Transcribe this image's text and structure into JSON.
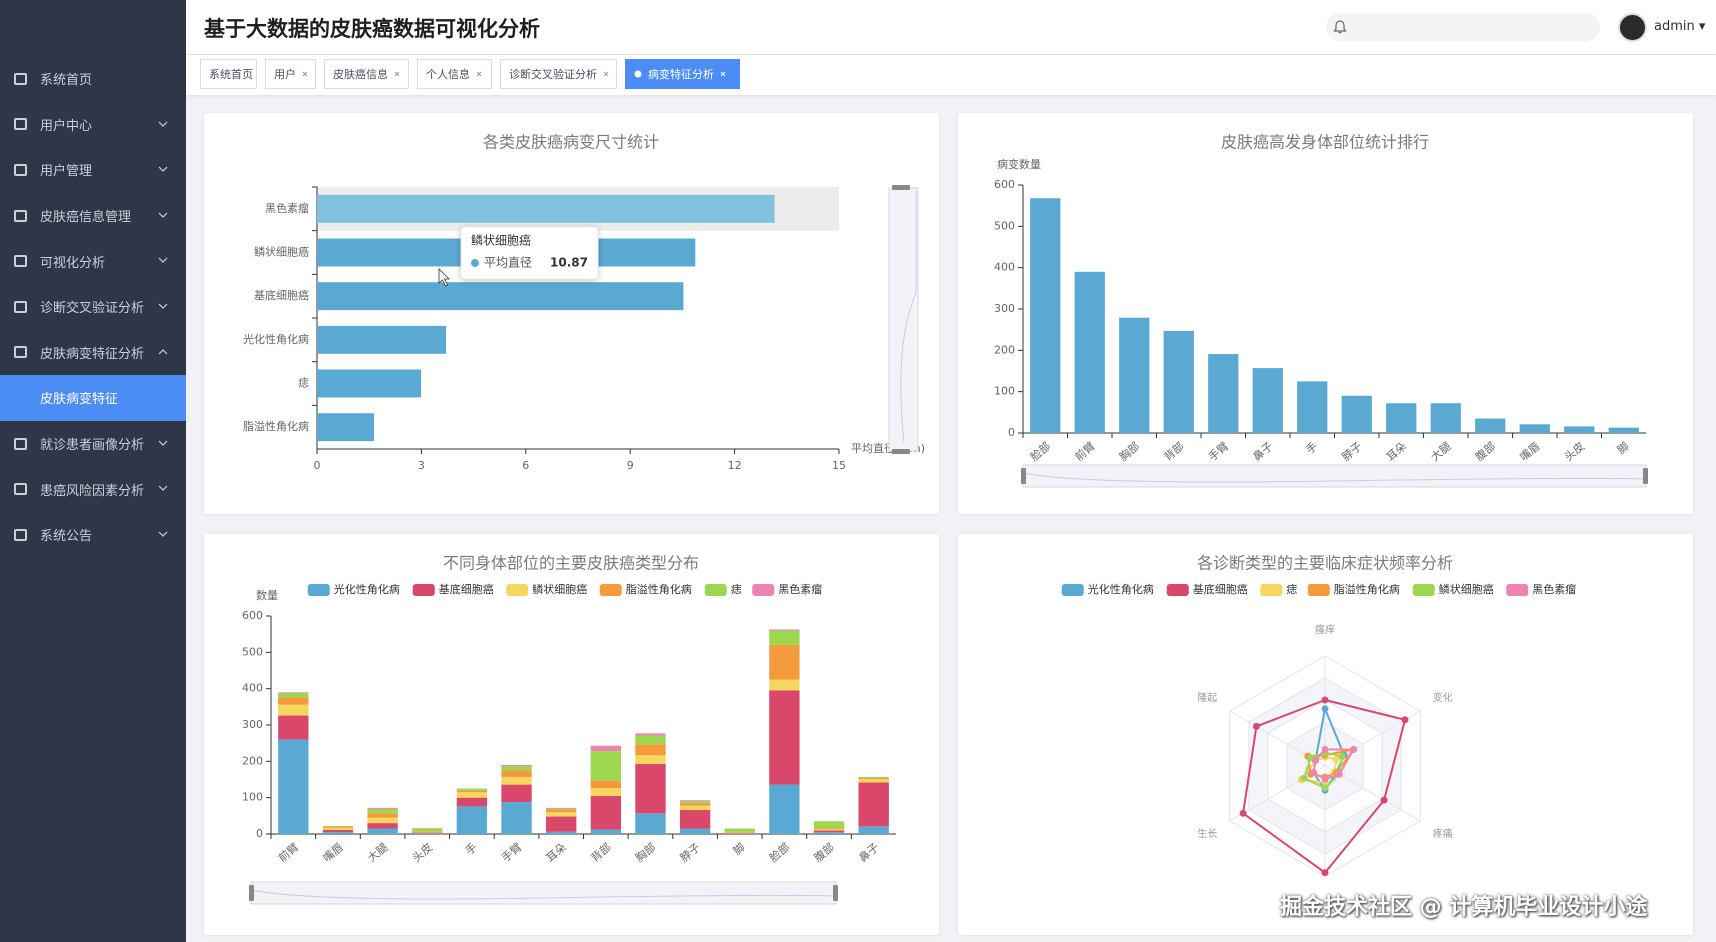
{
  "header": {
    "title": "基于大数据的皮肤癌数据可视化分析",
    "user": "admin"
  },
  "sidebar": {
    "items": [
      "系统首页",
      "用户中心",
      "用户管理",
      "皮肤癌信息管理",
      "可视化分析",
      "诊断交叉验证分析",
      "皮肤病变特征分析",
      "就诊患者画像分析",
      "患癌风险因素分析",
      "系统公告"
    ],
    "subitem": "皮肤病变特征"
  },
  "tabs": [
    "系统首页",
    "用户",
    "皮肤癌信息",
    "个人信息",
    "诊断交叉验证分析",
    "病变特征分析"
  ],
  "watermark": "掘金技术社区 @ 计算机毕业设计小途",
  "chart_data": [
    {
      "type": "hbar",
      "title": "各类皮肤癌病变尺寸统计",
      "categories": [
        "黑色素瘤",
        "鳞状细胞癌",
        "基底细胞癌",
        "光化性角化病",
        "痣",
        "脂溢性角化病"
      ],
      "series": [
        {
          "name": "平均直径",
          "color": "#5aa9d2",
          "values": [
            13.15,
            10.87,
            10.53,
            3.71,
            2.99,
            1.64
          ]
        }
      ],
      "x_axis_label": "平均直径(mm)",
      "xlim": [
        0,
        15
      ],
      "xticks": [
        0,
        3,
        6,
        9,
        12,
        15
      ]
    },
    {
      "type": "bar",
      "title": "皮肤癌高发身体部位统计排行",
      "y_axis_label": "病变数量",
      "categories": [
        "脸部",
        "前臂",
        "胸部",
        "背部",
        "手臂",
        "鼻子",
        "手",
        "脖子",
        "耳朵",
        "大腿",
        "腹部",
        "嘴唇",
        "头皮",
        "脚"
      ],
      "values": [
        568,
        390,
        279,
        247,
        191,
        157,
        125,
        90,
        72,
        72,
        35,
        21,
        16,
        13
      ],
      "color": "#5aa9d2",
      "ylim": [
        0,
        600
      ],
      "yticks": [
        0,
        100,
        200,
        300,
        400,
        500,
        600
      ]
    },
    {
      "type": "stacked_bar",
      "title": "不同身体部位的主要皮肤癌类型分布",
      "y_axis_label": "数量",
      "categories": [
        "前臂",
        "嘴唇",
        "大腿",
        "头皮",
        "手",
        "手臂",
        "耳朵",
        "背部",
        "胸部",
        "脖子",
        "脚",
        "脸部",
        "腹部",
        "鼻子"
      ],
      "series": [
        {
          "name": "光化性角化病",
          "color": "#5aa9d2",
          "values": [
            260,
            5,
            15,
            2,
            76,
            88,
            6,
            12,
            57,
            15,
            1,
            136,
            5,
            21
          ]
        },
        {
          "name": "基底细胞癌",
          "color": "#d9486a",
          "values": [
            66,
            6,
            15,
            2,
            24,
            48,
            42,
            93,
            136,
            51,
            1,
            259,
            5,
            121
          ]
        },
        {
          "name": "鳞状细胞癌",
          "color": "#f5d65e",
          "values": [
            30,
            6,
            15,
            2,
            15,
            21,
            12,
            21,
            24,
            12,
            2,
            30,
            3,
            9
          ]
        },
        {
          "name": "脂溢性角化病",
          "color": "#f59a3c",
          "values": [
            20,
            3,
            12,
            2,
            5,
            18,
            6,
            21,
            30,
            6,
            2,
            96,
            3,
            3
          ]
        },
        {
          "name": "痣",
          "color": "#9bd84f",
          "values": [
            12,
            2,
            12,
            8,
            5,
            12,
            3,
            81,
            24,
            6,
            9,
            39,
            19,
            3
          ]
        },
        {
          "name": "黑色素瘤",
          "color": "#ee84b2",
          "values": [
            2,
            0,
            3,
            0,
            0,
            3,
            3,
            15,
            6,
            3,
            0,
            3,
            0,
            0
          ]
        }
      ],
      "ylim": [
        0,
        600
      ],
      "yticks": [
        0,
        100,
        200,
        300,
        400,
        500,
        600
      ]
    },
    {
      "type": "radar",
      "title": "各诊断类型的主要临床症状频率分析",
      "indicators": [
        "瘙痒",
        "变化",
        "疼痛",
        null,
        "生长",
        "隆起"
      ],
      "rlim": [
        0,
        100
      ],
      "series": [
        {
          "name": "光化性角化病",
          "color": "#5aa9d2",
          "values": [
            52,
            20,
            12,
            22,
            12,
            10
          ]
        },
        {
          "name": "基底细胞癌",
          "color": "#d9486a",
          "values": [
            60,
            84,
            62,
            97,
            86,
            72
          ]
        },
        {
          "name": "痣",
          "color": "#f5d65e",
          "values": [
            8,
            12,
            10,
            15,
            25,
            10
          ]
        },
        {
          "name": "脂溢性角化病",
          "color": "#f59a3c",
          "values": [
            10,
            30,
            12,
            10,
            15,
            18
          ]
        },
        {
          "name": "鳞状细胞癌",
          "color": "#9bd84f",
          "values": [
            12,
            18,
            15,
            20,
            22,
            15
          ]
        },
        {
          "name": "黑色素瘤",
          "color": "#ee84b2",
          "values": [
            15,
            30,
            15,
            12,
            12,
            10
          ]
        }
      ]
    }
  ]
}
